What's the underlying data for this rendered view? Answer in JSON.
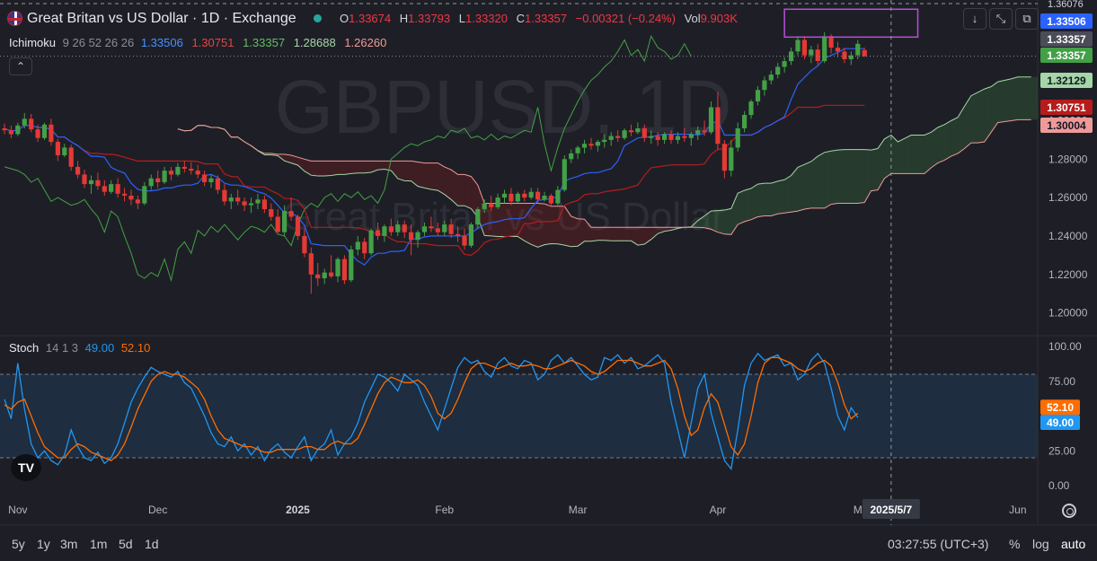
{
  "header": {
    "title": "Great Britan vs US Dollar · 1D · Exchange",
    "ohlc": [
      {
        "k": "O",
        "v": "1.33674"
      },
      {
        "k": "H",
        "v": "1.33793"
      },
      {
        "k": "L",
        "v": "1.33320"
      },
      {
        "k": "C",
        "v": "1.33357"
      }
    ],
    "change": "−0.00321 (−0.24%)",
    "vol_label": "Vol",
    "vol_value": "9.903K"
  },
  "ichimoku": {
    "name": "Ichimoku",
    "params": "9 26 52 26 26",
    "values": [
      "1.33506",
      "1.30751",
      "1.33357",
      "1.28688",
      "1.26260"
    ],
    "colors": [
      "#2962ff",
      "#b71c1c",
      "#43a047",
      "#a5d6a7",
      "#ef9a9a"
    ]
  },
  "stoch": {
    "name": "Stoch",
    "params": "14 1 3",
    "k_value": "49.00",
    "d_value": "52.10",
    "k_color": "#2196f3",
    "d_color": "#ff6d00"
  },
  "watermark": {
    "symbol": "GBPUSD, 1D",
    "name": "Great Britan vs US Dollar"
  },
  "price_axis": {
    "ticks": [
      "1.30000",
      "1.28000",
      "1.26000",
      "1.24000",
      "1.22000",
      "1.20000"
    ],
    "tick_values": [
      1.3,
      1.28,
      1.26,
      1.24,
      1.22,
      1.2
    ],
    "badges": [
      {
        "label": "1.33506",
        "price": 1.33506,
        "bg": "#2962ff",
        "fg": "#ffffff"
      },
      {
        "label": "1.33357",
        "price": 1.33357,
        "bg": "#4a4d57",
        "fg": "#ffffff"
      },
      {
        "label": "1.33357",
        "price": 1.33357,
        "bg": "#43a047",
        "fg": "#ffffff"
      },
      {
        "label": "1.32129",
        "price": 1.32129,
        "bg": "#a5d6a7",
        "fg": "#131722"
      },
      {
        "label": "1.30751",
        "price": 1.30751,
        "bg": "#b71c1c",
        "fg": "#ffffff"
      },
      {
        "label": "1.30004",
        "price": 1.30004,
        "bg": "#ef9a9a",
        "fg": "#131722"
      }
    ],
    "top_clip": "1.36076"
  },
  "stoch_axis": {
    "ticks": [
      "100.00",
      "75.00",
      "50.00",
      "25.00",
      "0.00"
    ],
    "tick_values": [
      100,
      75,
      50,
      25,
      0
    ],
    "badges": [
      {
        "label": "52.10",
        "value": 52.1,
        "bg": "#ff6d00"
      },
      {
        "label": "49.00",
        "value": 49.0,
        "bg": "#2196f3"
      }
    ]
  },
  "time_axis": {
    "labels": [
      {
        "label": "Nov",
        "i": 2
      },
      {
        "label": "Dec",
        "i": 23
      },
      {
        "label": "2025",
        "i": 44
      },
      {
        "label": "Feb",
        "i": 66
      },
      {
        "label": "Mar",
        "i": 86
      },
      {
        "label": "Apr",
        "i": 107
      },
      {
        "label": "M",
        "i": 128
      },
      {
        "label": "Jun",
        "i": 152
      }
    ],
    "cursor_label": "2025/5/7",
    "cursor_i": 133
  },
  "toolbar": {
    "down_arrow": "↓",
    "fullscreen": "⤡",
    "restore": "⧉",
    "collapse": "⌃"
  },
  "footer": {
    "ranges": [
      "5y",
      "1y",
      "3m",
      "1m",
      "5d",
      "1d"
    ],
    "time": "03:27:55 (UTC+3)",
    "percent": "%",
    "log": "log",
    "auto": "auto"
  },
  "chart_data": {
    "type": "candlestick",
    "title": "Great Britan vs US Dollar · 1D · Exchange",
    "price_range": [
      1.19,
      1.36
    ],
    "candles_ohlc": [
      [
        1.296,
        1.2985,
        1.293,
        1.295
      ],
      [
        1.295,
        1.2975,
        1.291,
        1.293
      ],
      [
        1.293,
        1.299,
        1.292,
        1.2975
      ],
      [
        1.2975,
        1.304,
        1.296,
        1.301
      ],
      [
        1.301,
        1.3035,
        1.294,
        1.2955
      ],
      [
        1.2955,
        1.298,
        1.289,
        1.291
      ],
      [
        1.291,
        1.299,
        1.29,
        1.298
      ],
      [
        1.298,
        1.301,
        1.287,
        1.289
      ],
      [
        1.289,
        1.2905,
        1.279,
        1.282
      ],
      [
        1.282,
        1.288,
        1.281,
        1.286
      ],
      [
        1.286,
        1.2875,
        1.274,
        1.276
      ],
      [
        1.276,
        1.279,
        1.27,
        1.272
      ],
      [
        1.272,
        1.2745,
        1.265,
        1.267
      ],
      [
        1.267,
        1.2715,
        1.262,
        1.269
      ],
      [
        1.269,
        1.273,
        1.264,
        1.266
      ],
      [
        1.266,
        1.269,
        1.261,
        1.263
      ],
      [
        1.263,
        1.269,
        1.262,
        1.267
      ],
      [
        1.267,
        1.27,
        1.26,
        1.262
      ],
      [
        1.262,
        1.265,
        1.258,
        1.261
      ],
      [
        1.261,
        1.264,
        1.256,
        1.259
      ],
      [
        1.259,
        1.261,
        1.254,
        1.257
      ],
      [
        1.257,
        1.268,
        1.256,
        1.266
      ],
      [
        1.266,
        1.272,
        1.264,
        1.27
      ],
      [
        1.27,
        1.274,
        1.265,
        1.268
      ],
      [
        1.268,
        1.276,
        1.267,
        1.274
      ],
      [
        1.274,
        1.276,
        1.269,
        1.272
      ],
      [
        1.272,
        1.278,
        1.271,
        1.276
      ],
      [
        1.276,
        1.279,
        1.273,
        1.275
      ],
      [
        1.275,
        1.2785,
        1.272,
        1.274
      ],
      [
        1.274,
        1.277,
        1.27,
        1.272
      ],
      [
        1.272,
        1.274,
        1.266,
        1.268
      ],
      [
        1.268,
        1.272,
        1.265,
        1.27
      ],
      [
        1.27,
        1.2715,
        1.262,
        1.264
      ],
      [
        1.264,
        1.267,
        1.256,
        1.258
      ],
      [
        1.258,
        1.262,
        1.254,
        1.26
      ],
      [
        1.26,
        1.264,
        1.256,
        1.258
      ],
      [
        1.258,
        1.26,
        1.253,
        1.256
      ],
      [
        1.256,
        1.26,
        1.252,
        1.257
      ],
      [
        1.257,
        1.262,
        1.254,
        1.259
      ],
      [
        1.259,
        1.261,
        1.252,
        1.254
      ],
      [
        1.254,
        1.257,
        1.248,
        1.25
      ],
      [
        1.25,
        1.254,
        1.245,
        1.242
      ],
      [
        1.242,
        1.256,
        1.24,
        1.253
      ],
      [
        1.253,
        1.26,
        1.248,
        1.25
      ],
      [
        1.25,
        1.251,
        1.238,
        1.24
      ],
      [
        1.24,
        1.244,
        1.229,
        1.231
      ],
      [
        1.231,
        1.234,
        1.21,
        1.22
      ],
      [
        1.22,
        1.226,
        1.214,
        1.218
      ],
      [
        1.218,
        1.223,
        1.215,
        1.221
      ],
      [
        1.221,
        1.23,
        1.218,
        1.219
      ],
      [
        1.219,
        1.229,
        1.216,
        1.228
      ],
      [
        1.228,
        1.23,
        1.215,
        1.217
      ],
      [
        1.217,
        1.235,
        1.216,
        1.233
      ],
      [
        1.233,
        1.24,
        1.23,
        1.237
      ],
      [
        1.237,
        1.239,
        1.228,
        1.231
      ],
      [
        1.231,
        1.244,
        1.23,
        1.243
      ],
      [
        1.243,
        1.247,
        1.238,
        1.24
      ],
      [
        1.24,
        1.246,
        1.237,
        1.245
      ],
      [
        1.245,
        1.249,
        1.24,
        1.242
      ],
      [
        1.242,
        1.248,
        1.24,
        1.246
      ],
      [
        1.246,
        1.248,
        1.239,
        1.242
      ],
      [
        1.242,
        1.246,
        1.23,
        1.238
      ],
      [
        1.238,
        1.243,
        1.234,
        1.242
      ],
      [
        1.242,
        1.247,
        1.24,
        1.245
      ],
      [
        1.245,
        1.25,
        1.242,
        1.244
      ],
      [
        1.244,
        1.247,
        1.24,
        1.242
      ],
      [
        1.242,
        1.248,
        1.24,
        1.246
      ],
      [
        1.246,
        1.249,
        1.239,
        1.241
      ],
      [
        1.241,
        1.245,
        1.237,
        1.24
      ],
      [
        1.24,
        1.244,
        1.233,
        1.235
      ],
      [
        1.235,
        1.247,
        1.234,
        1.246
      ],
      [
        1.246,
        1.255,
        1.244,
        1.254
      ],
      [
        1.254,
        1.259,
        1.252,
        1.257
      ],
      [
        1.257,
        1.261,
        1.253,
        1.255
      ],
      [
        1.255,
        1.262,
        1.254,
        1.26
      ],
      [
        1.26,
        1.264,
        1.257,
        1.262
      ],
      [
        1.262,
        1.265,
        1.256,
        1.258
      ],
      [
        1.258,
        1.263,
        1.257,
        1.262
      ],
      [
        1.262,
        1.264,
        1.258,
        1.26
      ],
      [
        1.26,
        1.265,
        1.259,
        1.263
      ],
      [
        1.263,
        1.265,
        1.257,
        1.259
      ],
      [
        1.259,
        1.263,
        1.258,
        1.261
      ],
      [
        1.261,
        1.262,
        1.255,
        1.257
      ],
      [
        1.257,
        1.266,
        1.256,
        1.264
      ],
      [
        1.264,
        1.282,
        1.263,
        1.28
      ],
      [
        1.28,
        1.285,
        1.278,
        1.283
      ],
      [
        1.283,
        1.287,
        1.28,
        1.286
      ],
      [
        1.286,
        1.29,
        1.283,
        1.288
      ],
      [
        1.288,
        1.291,
        1.285,
        1.287
      ],
      [
        1.287,
        1.29,
        1.284,
        1.289
      ],
      [
        1.289,
        1.293,
        1.286,
        1.29
      ],
      [
        1.29,
        1.294,
        1.287,
        1.292
      ],
      [
        1.292,
        1.295,
        1.289,
        1.291
      ],
      [
        1.291,
        1.296,
        1.29,
        1.295
      ],
      [
        1.295,
        1.298,
        1.292,
        1.294
      ],
      [
        1.294,
        1.299,
        1.293,
        1.296
      ],
      [
        1.296,
        1.298,
        1.289,
        1.291
      ],
      [
        1.291,
        1.295,
        1.288,
        1.292
      ],
      [
        1.292,
        1.294,
        1.287,
        1.29
      ],
      [
        1.29,
        1.294,
        1.288,
        1.293
      ],
      [
        1.293,
        1.295,
        1.288,
        1.29
      ],
      [
        1.29,
        1.294,
        1.288,
        1.292
      ],
      [
        1.292,
        1.296,
        1.289,
        1.291
      ],
      [
        1.291,
        1.294,
        1.287,
        1.293
      ],
      [
        1.293,
        1.297,
        1.29,
        1.295
      ],
      [
        1.295,
        1.3,
        1.292,
        1.294
      ],
      [
        1.294,
        1.31,
        1.293,
        1.307
      ],
      [
        1.307,
        1.315,
        1.285,
        1.288
      ],
      [
        1.288,
        1.29,
        1.27,
        1.274
      ],
      [
        1.274,
        1.29,
        1.271,
        1.286
      ],
      [
        1.286,
        1.299,
        1.284,
        1.296
      ],
      [
        1.296,
        1.305,
        1.294,
        1.303
      ],
      [
        1.303,
        1.311,
        1.301,
        1.31
      ],
      [
        1.31,
        1.318,
        1.308,
        1.316
      ],
      [
        1.316,
        1.323,
        1.313,
        1.321
      ],
      [
        1.321,
        1.326,
        1.319,
        1.324
      ],
      [
        1.324,
        1.33,
        1.322,
        1.328
      ],
      [
        1.328,
        1.333,
        1.325,
        1.331
      ],
      [
        1.331,
        1.338,
        1.329,
        1.336
      ],
      [
        1.336,
        1.344,
        1.334,
        1.342
      ],
      [
        1.342,
        1.344,
        1.332,
        1.334
      ],
      [
        1.334,
        1.339,
        1.33,
        1.337
      ],
      [
        1.337,
        1.34,
        1.329,
        1.331
      ],
      [
        1.331,
        1.346,
        1.33,
        1.344
      ],
      [
        1.344,
        1.345,
        1.335,
        1.338
      ],
      [
        1.338,
        1.341,
        1.333,
        1.336
      ],
      [
        1.336,
        1.338,
        1.33,
        1.332
      ],
      [
        1.332,
        1.336,
        1.329,
        1.334
      ],
      [
        1.334,
        1.342,
        1.332,
        1.34
      ],
      [
        1.33674,
        1.33793,
        1.3332,
        1.33357
      ]
    ],
    "stoch_k": [
      62,
      48,
      88,
      55,
      30,
      20,
      25,
      18,
      15,
      22,
      40,
      28,
      20,
      18,
      24,
      16,
      20,
      30,
      45,
      60,
      70,
      78,
      85,
      82,
      80,
      78,
      82,
      74,
      70,
      60,
      50,
      38,
      30,
      28,
      35,
      25,
      30,
      22,
      28,
      18,
      26,
      30,
      24,
      20,
      28,
      35,
      18,
      26,
      30,
      40,
      22,
      30,
      35,
      45,
      60,
      70,
      80,
      78,
      74,
      68,
      80,
      76,
      72,
      60,
      50,
      40,
      55,
      70,
      85,
      92,
      88,
      90,
      82,
      78,
      88,
      92,
      86,
      84,
      90,
      88,
      76,
      80,
      90,
      94,
      88,
      92,
      86,
      80,
      76,
      78,
      92,
      90,
      94,
      88,
      92,
      84,
      86,
      90,
      94,
      88,
      60,
      40,
      20,
      45,
      70,
      80,
      52,
      35,
      18,
      12,
      40,
      72,
      88,
      95,
      90,
      92,
      94,
      86,
      88,
      76,
      80,
      90,
      95,
      88,
      70,
      50,
      40,
      56,
      49
    ],
    "stoch_d": [
      58,
      55,
      60,
      62,
      50,
      38,
      28,
      24,
      20,
      20,
      26,
      30,
      28,
      24,
      22,
      20,
      18,
      22,
      30,
      42,
      55,
      65,
      75,
      80,
      82,
      80,
      80,
      78,
      74,
      70,
      62,
      50,
      40,
      34,
      32,
      30,
      28,
      28,
      26,
      24,
      24,
      26,
      26,
      26,
      26,
      28,
      28,
      26,
      26,
      30,
      32,
      30,
      30,
      34,
      44,
      55,
      66,
      74,
      78,
      76,
      74,
      74,
      76,
      72,
      64,
      52,
      48,
      52,
      62,
      74,
      84,
      88,
      88,
      86,
      84,
      86,
      88,
      86,
      86,
      87,
      86,
      84,
      84,
      86,
      88,
      90,
      88,
      86,
      82,
      80,
      82,
      86,
      90,
      90,
      90,
      88,
      86,
      86,
      88,
      90,
      84,
      70,
      50,
      36,
      40,
      56,
      66,
      60,
      44,
      28,
      22,
      30,
      50,
      74,
      88,
      92,
      92,
      90,
      88,
      84,
      82,
      84,
      88,
      90,
      86,
      74,
      58,
      48,
      52
    ]
  }
}
